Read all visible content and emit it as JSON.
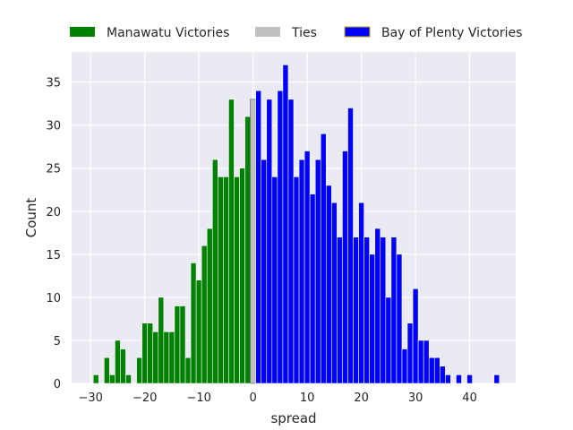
{
  "chart_data": {
    "type": "bar",
    "xlabel": "spread",
    "ylabel": "Count",
    "xlim": [
      -33.5,
      48.5
    ],
    "ylim": [
      0,
      38.5
    ],
    "grid": true,
    "background": "#EAEAF2",
    "legend_placement": "top, above plot",
    "x_ticks": [
      -30,
      -20,
      -10,
      0,
      10,
      20,
      30,
      40
    ],
    "x_tick_labels": [
      "−30",
      "−20",
      "−10",
      "0",
      "10",
      "20",
      "30",
      "40"
    ],
    "y_ticks": [
      0,
      5,
      10,
      15,
      20,
      25,
      30,
      35
    ],
    "y_tick_labels": [
      "0",
      "5",
      "10",
      "15",
      "20",
      "25",
      "30",
      "35"
    ],
    "series": [
      {
        "name": "Manawatu Victories",
        "color": "#008000",
        "edgecolor": "#ffffff",
        "x": [
          -29,
          -27,
          -26,
          -25,
          -24,
          -23,
          -21,
          -20,
          -19,
          -18,
          -17,
          -16,
          -15,
          -14,
          -13,
          -12,
          -11,
          -10,
          -9,
          -8,
          -7,
          -6,
          -5,
          -4,
          -3,
          -2,
          -1
        ],
        "values": [
          1,
          3,
          1,
          5,
          4,
          1,
          3,
          7,
          7,
          6,
          10,
          6,
          6,
          9,
          9,
          3,
          14,
          12,
          16,
          18,
          26,
          24,
          24,
          33,
          24,
          25,
          31
        ]
      },
      {
        "name": "Ties",
        "color": "#C0C0C0",
        "edgecolor": "#555555",
        "x": [
          0
        ],
        "values": [
          33
        ]
      },
      {
        "name": "Bay of Plenty Victories",
        "color": "#0000FF",
        "edgecolor": "#ffffff",
        "legend_edgecolor": "#CCAA00",
        "x": [
          1,
          2,
          3,
          4,
          5,
          6,
          7,
          8,
          9,
          10,
          11,
          12,
          13,
          14,
          15,
          16,
          17,
          18,
          19,
          20,
          21,
          22,
          23,
          24,
          25,
          26,
          27,
          28,
          29,
          30,
          31,
          32,
          33,
          34,
          35,
          36,
          38,
          40,
          45
        ],
        "values": [
          34,
          26,
          33,
          24,
          34,
          37,
          33,
          24,
          26,
          27,
          22,
          26,
          29,
          23,
          21,
          17,
          27,
          32,
          17,
          21,
          17,
          15,
          18,
          17,
          10,
          17,
          15,
          4,
          7,
          11,
          5,
          5,
          3,
          3,
          2,
          1,
          1,
          1,
          1
        ]
      }
    ]
  }
}
